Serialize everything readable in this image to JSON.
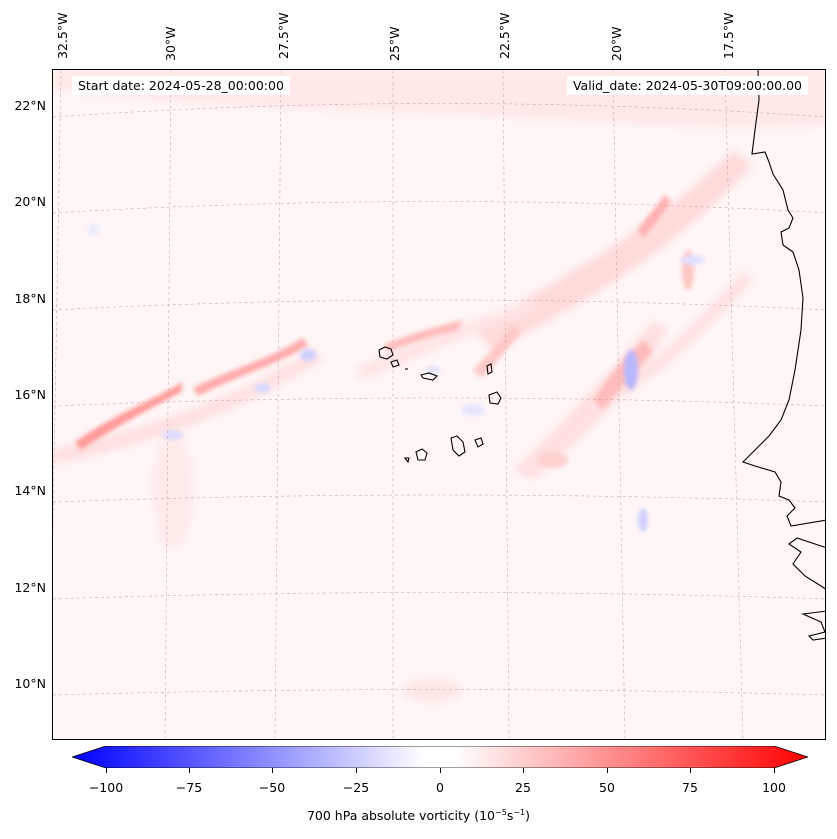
{
  "map": {
    "start_date": "Start date: 2024-05-28_00:00:00",
    "valid_date": "Valid_date: 2024-05-30T09:00:00.00",
    "longitude_labels": [
      "32.5°W",
      "30°W",
      "27.5°W",
      "25°W",
      "22.5°W",
      "20°W",
      "17.5°W"
    ],
    "latitude_labels": [
      "22°N",
      "20°N",
      "18°N",
      "16°N",
      "14°N",
      "12°N",
      "10°N"
    ],
    "field": "700 hPa absolute vorticity",
    "coast_color": "#000000",
    "grid_color": "#c8a8a8"
  },
  "colorbar": {
    "tick_labels": [
      "−100",
      "−75",
      "−50",
      "−25",
      "0",
      "25",
      "50",
      "75",
      "100"
    ],
    "min_color": "#0000ff",
    "mid_color": "#ffffff",
    "max_color": "#ff0000",
    "label_prefix": "700 hPa absolute vorticity (10",
    "label_exp1": "−5",
    "label_mid": "s",
    "label_exp2": "−1",
    "label_suffix": ")"
  }
}
